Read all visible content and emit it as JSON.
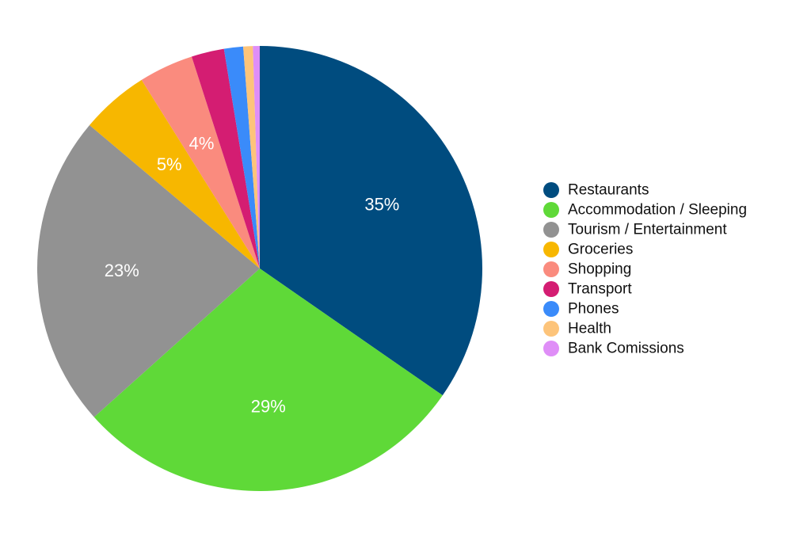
{
  "chart_data": {
    "type": "pie",
    "title": "",
    "legend_position": "right",
    "slices": [
      {
        "name": "Restaurants",
        "value": 35,
        "color": "#004c7f",
        "label": "35%"
      },
      {
        "name": "Accommodation / Sleeping",
        "value": 29,
        "color": "#5fd938",
        "label": "29%"
      },
      {
        "name": "Tourism / Entertainment",
        "value": 23,
        "color": "#929292",
        "label": "23%"
      },
      {
        "name": "Groceries",
        "value": 5,
        "color": "#f7b700",
        "label": "5%"
      },
      {
        "name": "Shopping",
        "value": 4,
        "color": "#fa8b7e",
        "label": "4%"
      },
      {
        "name": "Transport",
        "value": 2.4,
        "color": "#d41d72",
        "label": ""
      },
      {
        "name": "Phones",
        "value": 1.4,
        "color": "#3a8bfa",
        "label": ""
      },
      {
        "name": "Health",
        "value": 0.7,
        "color": "#fdc47a",
        "label": ""
      },
      {
        "name": "Bank Comissions",
        "value": 0.5,
        "color": "#df8ef7",
        "label": ""
      }
    ]
  }
}
